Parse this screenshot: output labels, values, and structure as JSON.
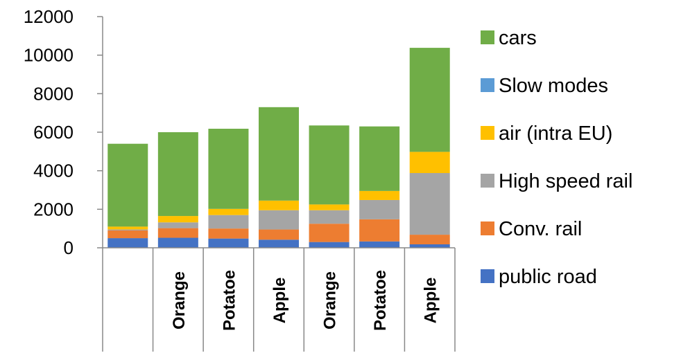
{
  "chart_data": {
    "type": "bar",
    "stacked": true,
    "categories": [
      "",
      "Orange",
      "Potatoe",
      "Apple",
      "Orange",
      "Potatoe",
      "Apple"
    ],
    "ylim": [
      0,
      12000
    ],
    "yticks": [
      0,
      2000,
      4000,
      6000,
      8000,
      10000,
      12000
    ],
    "grid": false,
    "legend_position": "right",
    "series": [
      {
        "name": "public road",
        "color": "#4472C4",
        "values": [
          500,
          520,
          480,
          420,
          300,
          330,
          180
        ]
      },
      {
        "name": "Conv. rail",
        "color": "#ED7D31",
        "values": [
          400,
          500,
          520,
          530,
          950,
          1150,
          500
        ]
      },
      {
        "name": "High speed rail",
        "color": "#A5A5A5",
        "values": [
          50,
          300,
          700,
          1000,
          700,
          1000,
          3200
        ]
      },
      {
        "name": "air (intra EU)",
        "color": "#FFC000",
        "values": [
          150,
          330,
          320,
          500,
          300,
          470,
          1100
        ]
      },
      {
        "name": "Slow modes",
        "color": "#5B9BD5",
        "values": [
          0,
          0,
          0,
          0,
          0,
          0,
          0
        ]
      },
      {
        "name": "cars",
        "color": "#70AD47",
        "values": [
          4300,
          4350,
          4160,
          4850,
          4100,
          3350,
          5400
        ]
      }
    ]
  }
}
